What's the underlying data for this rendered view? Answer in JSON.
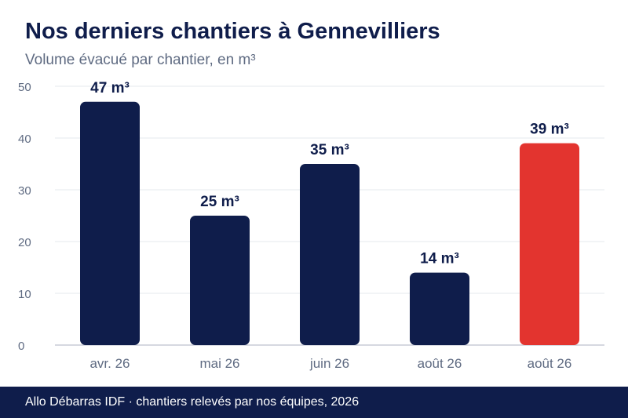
{
  "header": {
    "title": "Nos derniers chantiers à Gennevilliers",
    "subtitle": "Volume évacué par chantier, en m³"
  },
  "footer": {
    "source": "Allo Débarras IDF · chantiers relevés par nos équipes, 2026"
  },
  "colors": {
    "bar_default": "#0f1d4b",
    "bar_highlight": "#e3342f",
    "title": "#0f1d4b",
    "axis_text": "#5f6b82",
    "grid": "#e6e8ee",
    "footer_bg": "#0f1d4b"
  },
  "chart_data": {
    "type": "bar",
    "title": "Nos derniers chantiers à Gennevilliers",
    "subtitle": "Volume évacué par chantier, en m³",
    "categories": [
      "avr. 26",
      "mai 26",
      "juin 26",
      "août 26",
      "août 26"
    ],
    "values": [
      47,
      25,
      35,
      14,
      39
    ],
    "value_labels": [
      "47 m³",
      "25 m³",
      "35 m³",
      "14 m³",
      "39 m³"
    ],
    "highlight_index": 4,
    "y_ticks": [
      "0",
      "10",
      "20",
      "30",
      "40",
      "50"
    ],
    "ylim": [
      0,
      50
    ],
    "xlabel": "",
    "ylabel": "",
    "grid": true,
    "legend": "none"
  }
}
